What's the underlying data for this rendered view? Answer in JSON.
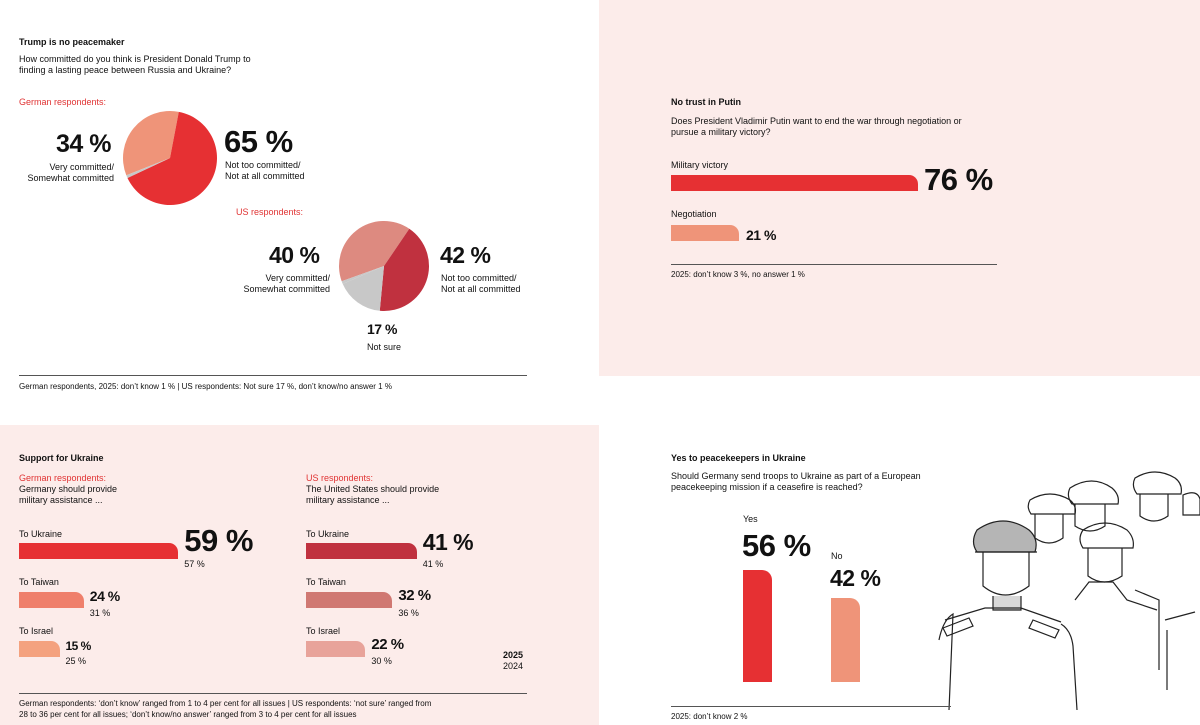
{
  "colors": {
    "red": "#e63033",
    "salmon": "#ef9479",
    "dark_red": "#c0313f",
    "pink": "#f8e8e8",
    "us_pink": "#dd8a80",
    "grey": "#c8c8c8",
    "orange": "#f4a27f",
    "muted_red": "#d07872",
    "light_salmon": "#e8a39a"
  },
  "panel1": {
    "title": "Trump is no peacemaker",
    "question": [
      "How committed do you think is President Donald Trump to",
      "finding a lasting peace between Russia and Ukraine?"
    ],
    "german_label": "German respondents:",
    "german_committed_value": "34 %",
    "german_committed_label": [
      "Very committed/",
      "Somewhat committed"
    ],
    "german_not_value": "65 %",
    "german_not_label": [
      "Not too committed/",
      "Not at all committed"
    ],
    "us_label": "US respondents:",
    "us_committed_value": "40 %",
    "us_committed_label": [
      "Very committed/",
      "Somewhat committed"
    ],
    "us_not_value": "42 %",
    "us_not_label": [
      "Not too committed/",
      "Not at all committed"
    ],
    "us_unsure_value": "17 %",
    "us_unsure_label": "Not sure",
    "footnote": "German respondents, 2025: don’t know 1 % | US respondents: Not sure 17 %, don’t know/no answer 1 %"
  },
  "panel2": {
    "title": "No trust in Putin",
    "question": [
      "Does President Vladimir Putin want to end the war through negotiation or",
      "pursue a military victory?"
    ],
    "items": [
      {
        "label": "Military victory",
        "value": "76 %"
      },
      {
        "label": "Negotiation",
        "value": "21 %"
      }
    ],
    "footnote": "2025: don’t know 3 %, no answer 1 %"
  },
  "panel3": {
    "title": "Support for Ukraine",
    "german_label": "German respondents:",
    "german_question": [
      "Germany should provide",
      "military assistance ..."
    ],
    "us_label": "US respondents:",
    "us_question": [
      "The United States should provide",
      "military assistance ..."
    ],
    "german_items": [
      {
        "label": "To Ukraine",
        "value": "59 %",
        "prev": "57 %"
      },
      {
        "label": "To Taiwan",
        "value": "24 %",
        "prev": "31 %"
      },
      {
        "label": "To Israel",
        "value": "15 %",
        "prev": "25 %"
      }
    ],
    "us_items": [
      {
        "label": "To Ukraine",
        "value": "41 %",
        "prev": "41 %"
      },
      {
        "label": "To Taiwan",
        "value": "32 %",
        "prev": "36 %"
      },
      {
        "label": "To Israel",
        "value": "22 %",
        "prev": "30 %"
      }
    ],
    "legend_current": "2025",
    "legend_prev": "2024",
    "footnote": [
      "German respondents: ‘don’t know’ ranged from 1 to 4 per cent for all issues | US respondents: ‘not sure’ ranged from",
      "28 to 36 per cent for all issues; ‘don’t know/no answer’ ranged from 3 to 4 per cent for all issues"
    ]
  },
  "panel4": {
    "title": "Yes to peacekeepers in Ukraine",
    "question": [
      "Should Germany send troops to Ukraine as part of a European",
      "peacekeeping mission if a ceasefire is reached?"
    ],
    "yes_label": "Yes",
    "yes_value": "56 %",
    "no_label": "No",
    "no_value": "42 %",
    "footnote": "2025: don’t know 2 %"
  },
  "chart_data": [
    {
      "type": "pie",
      "title": "Trump is no peacemaker — German respondents",
      "categories": [
        "Very committed/Somewhat committed",
        "Not too committed/Not at all committed",
        "Don't know"
      ],
      "values": [
        34,
        65,
        1
      ]
    },
    {
      "type": "pie",
      "title": "Trump is no peacemaker — US respondents",
      "categories": [
        "Very committed/Somewhat committed",
        "Not too committed/Not at all committed",
        "Not sure",
        "Don't know/no answer"
      ],
      "values": [
        40,
        42,
        17,
        1
      ]
    },
    {
      "type": "bar",
      "title": "No trust in Putin",
      "categories": [
        "Military victory",
        "Negotiation"
      ],
      "values": [
        76,
        21
      ],
      "xlim": [
        0,
        100
      ]
    },
    {
      "type": "bar",
      "title": "Support for Ukraine — German respondents",
      "categories": [
        "To Ukraine",
        "To Taiwan",
        "To Israel"
      ],
      "series": [
        {
          "name": "2025",
          "values": [
            59,
            24,
            15
          ]
        },
        {
          "name": "2024",
          "values": [
            57,
            31,
            25
          ]
        }
      ],
      "xlim": [
        0,
        100
      ]
    },
    {
      "type": "bar",
      "title": "Support for Ukraine — US respondents",
      "categories": [
        "To Ukraine",
        "To Taiwan",
        "To Israel"
      ],
      "series": [
        {
          "name": "2025",
          "values": [
            41,
            32,
            22
          ]
        },
        {
          "name": "2024",
          "values": [
            41,
            36,
            30
          ]
        }
      ],
      "xlim": [
        0,
        100
      ]
    },
    {
      "type": "bar",
      "title": "Yes to peacekeepers in Ukraine",
      "categories": [
        "Yes",
        "No"
      ],
      "values": [
        56,
        42
      ],
      "ylim": [
        0,
        100
      ]
    }
  ]
}
